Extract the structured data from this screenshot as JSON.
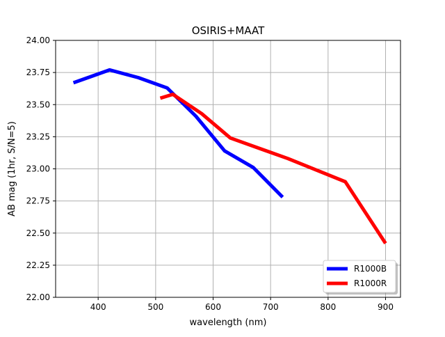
{
  "chart_data": {
    "type": "line",
    "title": "OSIRIS+MAAT",
    "xlabel": "wavelength (nm)",
    "ylabel": "AB mag (1hr, S/N=5)",
    "xlim": [
      326,
      926
    ],
    "ylim": [
      22.0,
      24.0
    ],
    "xticks": [
      400,
      500,
      600,
      700,
      800,
      900
    ],
    "xtick_labels": [
      "400",
      "500",
      "600",
      "700",
      "800",
      "900"
    ],
    "yticks": [
      22.0,
      22.25,
      22.5,
      22.75,
      23.0,
      23.25,
      23.5,
      23.75,
      24.0
    ],
    "ytick_labels": [
      "22.00",
      "22.25",
      "22.50",
      "22.75",
      "23.00",
      "23.25",
      "23.50",
      "23.75",
      "24.00"
    ],
    "grid": true,
    "legend_position": "lower-right",
    "series": [
      {
        "name": "R1000B",
        "color": "#0000ff",
        "x": [
          357,
          420,
          470,
          520,
          570,
          620,
          670,
          721
        ],
        "y": [
          23.67,
          23.77,
          23.71,
          23.63,
          23.41,
          23.14,
          23.01,
          22.78
        ]
      },
      {
        "name": "R1000R",
        "color": "#ff0000",
        "x": [
          508,
          530,
          580,
          630,
          730,
          830,
          900
        ],
        "y": [
          23.55,
          23.58,
          23.43,
          23.24,
          23.08,
          22.9,
          22.42
        ]
      }
    ]
  }
}
